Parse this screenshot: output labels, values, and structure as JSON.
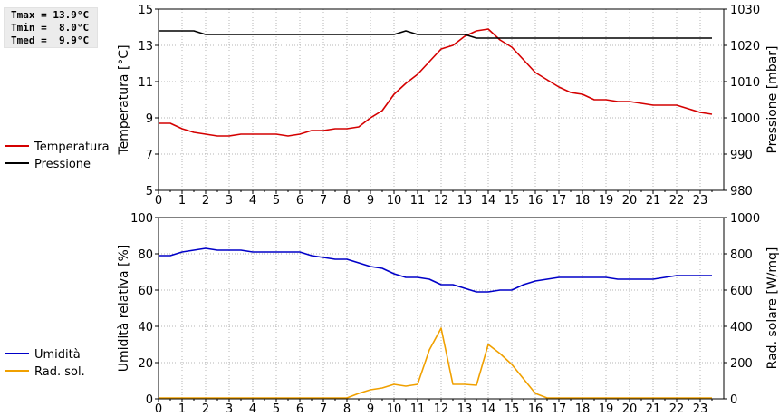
{
  "stats": {
    "tmax": "Tmax = 13.9°C",
    "tmin": "Tmin =  8.0°C",
    "tmed": "Tmed =  9.9°C"
  },
  "colors": {
    "temperature": "#d40000",
    "pressure": "#000000",
    "humidity": "#0000c8",
    "radiation": "#f0a000",
    "grid": "#b4b4b4"
  },
  "chart_data": [
    {
      "type": "line",
      "title": "",
      "xlabel": "",
      "x_ticks": [
        "0",
        "1",
        "2",
        "3",
        "4",
        "5",
        "6",
        "7",
        "8",
        "9",
        "10",
        "11",
        "12",
        "13",
        "14",
        "15",
        "16",
        "17",
        "18",
        "19",
        "20",
        "21",
        "22",
        "23"
      ],
      "xlim": [
        0,
        24
      ],
      "ylabel": "Temperatura [°C]",
      "ylim": [
        5,
        15
      ],
      "y_ticks": [
        "5",
        "7",
        "9",
        "11",
        "13",
        "15"
      ],
      "y2label": "Pressione [mbar]",
      "y2lim": [
        980,
        1030
      ],
      "y2_ticks": [
        "980",
        "990",
        "1000",
        "1010",
        "1020",
        "1030"
      ],
      "grid": true,
      "legend": "left",
      "series": [
        {
          "name": "Temperatura",
          "axis": "left",
          "color": "#d40000",
          "x": [
            0,
            0.5,
            1,
            1.5,
            2,
            2.5,
            3,
            3.5,
            4,
            4.5,
            5,
            5.5,
            6,
            6.5,
            7,
            7.5,
            8,
            8.5,
            9,
            9.5,
            10,
            10.5,
            11,
            11.5,
            12,
            12.5,
            13,
            13.5,
            14,
            14.5,
            15,
            15.5,
            16,
            16.5,
            17,
            17.5,
            18,
            18.5,
            19,
            19.5,
            20,
            20.5,
            21,
            21.5,
            22,
            22.5,
            23,
            23.5
          ],
          "values": [
            8.7,
            8.7,
            8.4,
            8.2,
            8.1,
            8.0,
            8.0,
            8.1,
            8.1,
            8.1,
            8.1,
            8.0,
            8.1,
            8.3,
            8.3,
            8.4,
            8.4,
            8.5,
            9.0,
            9.4,
            10.3,
            10.9,
            11.4,
            12.1,
            12.8,
            13.0,
            13.5,
            13.8,
            13.9,
            13.3,
            12.9,
            12.2,
            11.5,
            11.1,
            10.7,
            10.4,
            10.3,
            10.0,
            10.0,
            9.9,
            9.9,
            9.8,
            9.7,
            9.7,
            9.7,
            9.5,
            9.3,
            9.2
          ]
        },
        {
          "name": "Pressione",
          "axis": "right",
          "color": "#000000",
          "x": [
            0,
            1.5,
            2,
            10,
            10.5,
            11,
            13,
            13.5,
            23.5
          ],
          "values": [
            1024,
            1024,
            1023,
            1023,
            1024,
            1023,
            1023,
            1022,
            1022
          ]
        }
      ]
    },
    {
      "type": "line",
      "title": "",
      "xlabel": "",
      "x_ticks": [
        "0",
        "1",
        "2",
        "3",
        "4",
        "5",
        "6",
        "7",
        "8",
        "9",
        "10",
        "11",
        "12",
        "13",
        "14",
        "15",
        "16",
        "17",
        "18",
        "19",
        "20",
        "21",
        "22",
        "23"
      ],
      "xlim": [
        0,
        24
      ],
      "ylabel": "Umidità relativa [%]",
      "ylim": [
        0,
        100
      ],
      "y_ticks": [
        "0",
        "20",
        "40",
        "60",
        "80",
        "100"
      ],
      "y2label": "Rad. solare [W/mq]",
      "y2lim": [
        0,
        1000
      ],
      "y2_ticks": [
        "0",
        "200",
        "400",
        "600",
        "800",
        "1000"
      ],
      "grid": true,
      "legend": "left",
      "series": [
        {
          "name": "Umidità",
          "axis": "left",
          "color": "#0000c8",
          "x": [
            0,
            0.5,
            1,
            1.5,
            2,
            2.5,
            3,
            3.5,
            4,
            4.5,
            5,
            5.5,
            6,
            6.5,
            7,
            7.5,
            8,
            8.5,
            9,
            9.5,
            10,
            10.5,
            11,
            11.5,
            12,
            12.5,
            13,
            13.5,
            14,
            14.5,
            15,
            15.5,
            16,
            16.5,
            17,
            17.5,
            18,
            18.5,
            19,
            19.5,
            20,
            20.5,
            21,
            21.5,
            22,
            22.5,
            23,
            23.5
          ],
          "values": [
            79,
            79,
            81,
            82,
            83,
            82,
            82,
            82,
            81,
            81,
            81,
            81,
            81,
            79,
            78,
            77,
            77,
            75,
            73,
            72,
            69,
            67,
            67,
            66,
            63,
            63,
            61,
            59,
            59,
            60,
            60,
            63,
            65,
            66,
            67,
            67,
            67,
            67,
            67,
            66,
            66,
            66,
            66,
            67,
            68,
            68,
            68,
            68
          ]
        },
        {
          "name": "Rad. sol.",
          "axis": "right",
          "color": "#f0a000",
          "x": [
            0,
            0.5,
            1,
            1.5,
            2,
            2.5,
            3,
            3.5,
            4,
            4.5,
            5,
            5.5,
            6,
            6.5,
            7,
            7.5,
            8,
            8.5,
            9,
            9.5,
            10,
            10.5,
            11,
            11.5,
            12,
            12.5,
            13,
            13.5,
            14,
            14.5,
            15,
            15.5,
            16,
            16.5,
            17,
            17.5,
            18,
            18.5,
            19,
            19.5,
            20,
            20.5,
            21,
            21.5,
            22,
            22.5,
            23,
            23.5
          ],
          "values": [
            5,
            5,
            5,
            5,
            5,
            5,
            5,
            5,
            5,
            5,
            5,
            5,
            5,
            5,
            5,
            5,
            5,
            30,
            50,
            60,
            80,
            70,
            80,
            270,
            390,
            80,
            80,
            75,
            300,
            250,
            190,
            110,
            30,
            5,
            5,
            5,
            5,
            5,
            5,
            5,
            5,
            5,
            5,
            5,
            5,
            5,
            5,
            5
          ]
        }
      ]
    }
  ]
}
